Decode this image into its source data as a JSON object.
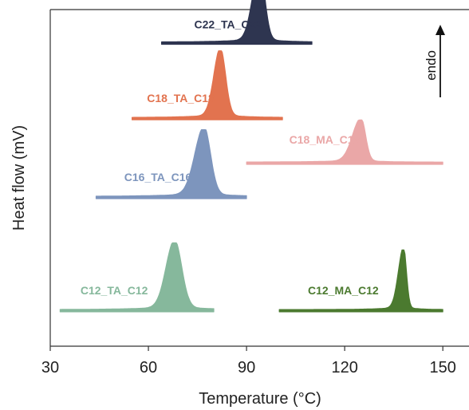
{
  "chart_data": {
    "type": "area",
    "xlabel": "Temperature (°C)",
    "ylabel": "Heat flow (mV)",
    "xlim": [
      30,
      158
    ],
    "xticks": [
      "30",
      "60",
      "90",
      "120",
      "150"
    ],
    "yticks": [],
    "grid": false,
    "legend": "none",
    "annotation": "endo",
    "series": [
      {
        "name": "C22_TA_C22",
        "color": "#2e3550",
        "x_range": [
          64,
          110
        ],
        "peak_temperature": 94,
        "peak_height": 1.0,
        "width_left": 2.2,
        "width_right": 1.6,
        "baseline_offset": 8.8
      },
      {
        "name": "C18_TA_C18",
        "color": "#e2734f",
        "x_range": [
          55,
          101
        ],
        "peak_temperature": 82,
        "peak_height": 0.95,
        "width_left": 2.0,
        "width_right": 1.6,
        "baseline_offset": 6.6
      },
      {
        "name": "C18_MA_C18",
        "color": "#eaa7a7",
        "x_range": [
          90,
          150
        ],
        "peak_temperature": 125,
        "peak_height": 0.6,
        "width_left": 2.6,
        "width_right": 1.4,
        "baseline_offset": 5.3
      },
      {
        "name": "C16_TA_C16",
        "color": "#7d95bd",
        "x_range": [
          44,
          90
        ],
        "peak_temperature": 77,
        "peak_height": 0.95,
        "width_left": 2.8,
        "width_right": 2.0,
        "baseline_offset": 4.3
      },
      {
        "name": "C12_TA_C12",
        "color": "#86b89c",
        "x_range": [
          33,
          80
        ],
        "peak_temperature": 68,
        "peak_height": 0.95,
        "width_left": 2.6,
        "width_right": 2.2,
        "baseline_offset": 1.0
      },
      {
        "name": "C12_MA_C12",
        "color": "#4b7a2f",
        "x_range": [
          100,
          150
        ],
        "peak_temperature": 138,
        "peak_height": 0.85,
        "width_left": 1.6,
        "width_right": 0.9,
        "baseline_offset": 1.0
      }
    ]
  }
}
